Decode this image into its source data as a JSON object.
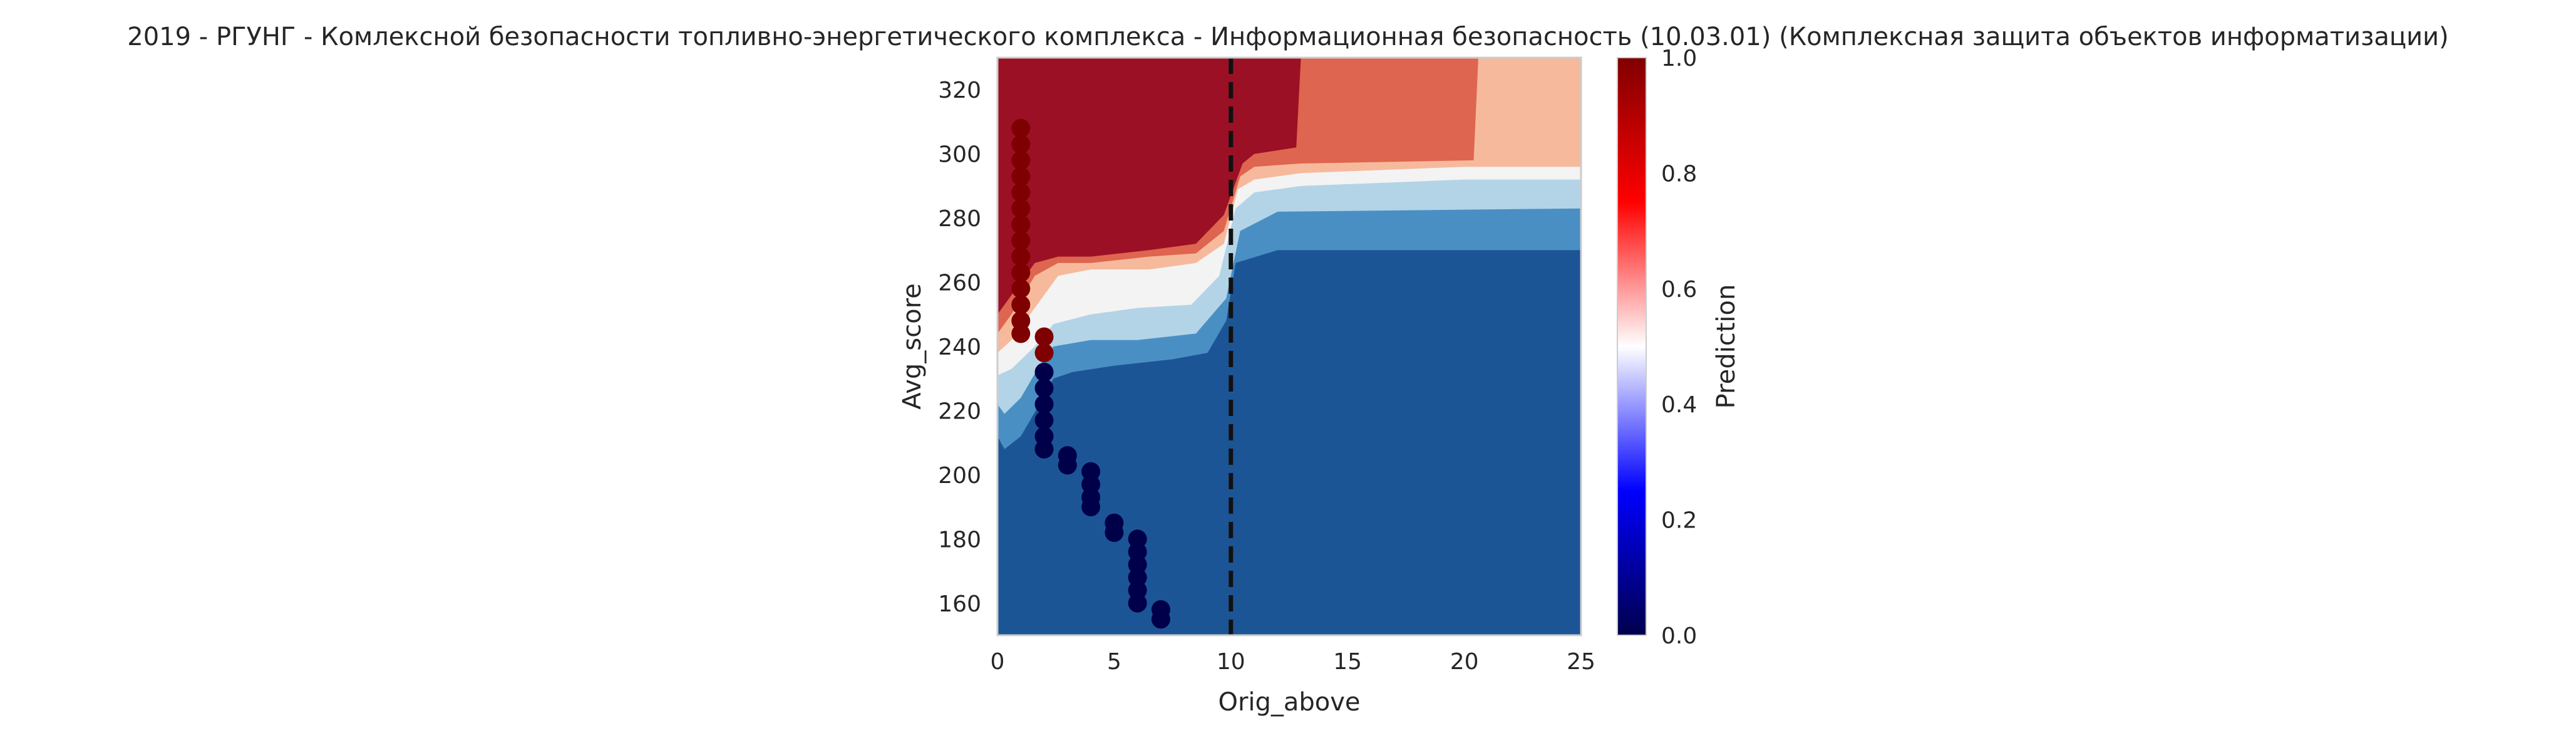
{
  "chart_data": {
    "type": "heatmap",
    "subtype": "filled-contour-with-scatter",
    "title": "2019 - РГУНГ - Комлексной безопасности топливно-энергетического комплекса - Информационная безопасность (10.03.01) (Комплексная защита объектов информатизации)",
    "xlabel": "Orig_above",
    "ylabel": "Avg_score",
    "xlim": [
      0,
      25
    ],
    "ylim": [
      150,
      330
    ],
    "x_ticks": [
      "0",
      "5",
      "10",
      "15",
      "20",
      "25"
    ],
    "y_ticks": [
      "160",
      "180",
      "200",
      "220",
      "240",
      "260",
      "280",
      "300",
      "320"
    ],
    "grid": false,
    "threshold_line": {
      "x": 10,
      "style": "dashed",
      "color": "#111111"
    },
    "colorbar": {
      "label": "Prediction",
      "range": [
        0,
        1
      ],
      "ticks": [
        "0.0",
        "0.2",
        "0.4",
        "0.6",
        "0.8",
        "1.0"
      ],
      "colormap": "seismic"
    },
    "contour_levels": {
      "colors": [
        "#1c5596",
        "#4a8fc4",
        "#b3d4e7",
        "#f3f3f3",
        "#f7b99b",
        "#de654f",
        "#9b1025"
      ]
    },
    "scatter": {
      "class_1_color": "#7f0000",
      "class_0_color": "#00004a",
      "points_high": [
        {
          "x": 1,
          "y": 308
        },
        {
          "x": 1,
          "y": 303
        },
        {
          "x": 1,
          "y": 298
        },
        {
          "x": 1,
          "y": 293
        },
        {
          "x": 1,
          "y": 288
        },
        {
          "x": 1,
          "y": 283
        },
        {
          "x": 1,
          "y": 278
        },
        {
          "x": 1,
          "y": 273
        },
        {
          "x": 1,
          "y": 268
        },
        {
          "x": 1,
          "y": 263
        },
        {
          "x": 1,
          "y": 258
        },
        {
          "x": 1,
          "y": 253
        },
        {
          "x": 1,
          "y": 248
        },
        {
          "x": 1,
          "y": 244
        },
        {
          "x": 2,
          "y": 243
        },
        {
          "x": 2,
          "y": 238
        }
      ],
      "points_low": [
        {
          "x": 2,
          "y": 232
        },
        {
          "x": 2,
          "y": 227
        },
        {
          "x": 2,
          "y": 222
        },
        {
          "x": 2,
          "y": 217
        },
        {
          "x": 2,
          "y": 212
        },
        {
          "x": 2,
          "y": 208
        },
        {
          "x": 3,
          "y": 206
        },
        {
          "x": 3,
          "y": 203
        },
        {
          "x": 4,
          "y": 201
        },
        {
          "x": 4,
          "y": 197
        },
        {
          "x": 4,
          "y": 193
        },
        {
          "x": 4,
          "y": 190
        },
        {
          "x": 5,
          "y": 185
        },
        {
          "x": 5,
          "y": 182
        },
        {
          "x": 6,
          "y": 180
        },
        {
          "x": 6,
          "y": 176
        },
        {
          "x": 6,
          "y": 172
        },
        {
          "x": 6,
          "y": 168
        },
        {
          "x": 6,
          "y": 164
        },
        {
          "x": 6,
          "y": 160
        },
        {
          "x": 7,
          "y": 158
        },
        {
          "x": 7,
          "y": 155
        }
      ]
    }
  }
}
